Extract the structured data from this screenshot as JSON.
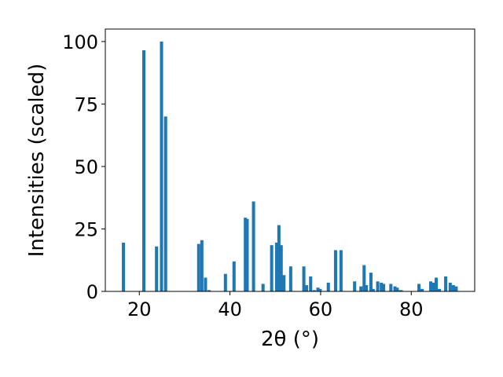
{
  "chart_data": {
    "type": "bar",
    "xlabel": "2θ (°)",
    "ylabel": "Intensities (scaled)",
    "xlim": [
      12.5,
      94
    ],
    "ylim": [
      0,
      105
    ],
    "xticks": [
      20,
      40,
      60,
      80
    ],
    "yticks": [
      0,
      25,
      50,
      75,
      100
    ],
    "grid": false,
    "bar_color": "#1f77b4",
    "bar_width_deg": 0.7,
    "x": [
      16.5,
      21.0,
      23.8,
      24.9,
      25.8,
      33.1,
      33.8,
      34.6,
      35.4,
      39.0,
      40.9,
      43.4,
      43.8,
      45.2,
      47.3,
      49.2,
      50.3,
      50.8,
      51.3,
      51.9,
      53.4,
      56.3,
      56.9,
      57.8,
      58.6,
      59.4,
      59.9,
      61.7,
      63.3,
      64.5,
      67.5,
      68.9,
      69.6,
      70.1,
      71.1,
      71.6,
      72.6,
      73.4,
      73.9,
      75.5,
      76.4,
      76.9,
      77.4,
      77.8,
      81.7,
      82.4,
      84.3,
      84.9,
      85.5,
      86.2,
      87.6,
      88.6,
      89.3,
      89.9
    ],
    "values": [
      19.5,
      96.5,
      18,
      100,
      70,
      19,
      20.5,
      5.5,
      0.5,
      7,
      12,
      29.5,
      29,
      36,
      3,
      18.5,
      19.5,
      26.5,
      18.5,
      6.5,
      10,
      10,
      2.5,
      6,
      0.5,
      1.5,
      1,
      3.5,
      16.5,
      16.5,
      4,
      2,
      10.5,
      2.5,
      7.5,
      1,
      4,
      3.5,
      3,
      3,
      2,
      1.5,
      0.5,
      0.5,
      3,
      1,
      4,
      3.5,
      5.5,
      1,
      6,
      3.5,
      2.5,
      2
    ]
  }
}
